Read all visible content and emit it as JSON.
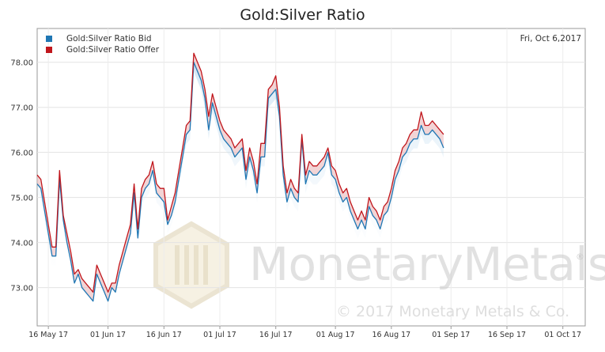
{
  "chart_data": {
    "type": "line",
    "title": "Gold:Silver Ratio",
    "date_label": "Fri, Oct 6,2017",
    "xlabel": "",
    "ylabel": "",
    "ylim": [
      72.15,
      78.75
    ],
    "y_ticks": [
      "73.00",
      "74.00",
      "75.00",
      "76.00",
      "77.00",
      "78.00"
    ],
    "x_ticks": [
      {
        "label": "16 May 17",
        "t": 3
      },
      {
        "label": "01 Jun 17",
        "t": 19
      },
      {
        "label": "16 Jun 17",
        "t": 34
      },
      {
        "label": "01 Jul 17",
        "t": 49
      },
      {
        "label": "16 Jul 17",
        "t": 64
      },
      {
        "label": "01 Aug 17",
        "t": 80
      },
      {
        "label": "16 Aug 17",
        "t": 95
      },
      {
        "label": "01 Sep 17",
        "t": 111
      },
      {
        "label": "16 Sep 17",
        "t": 126
      },
      {
        "label": "01 Oct 17",
        "t": 141
      }
    ],
    "x_range": [
      0,
      147
    ],
    "grid": true,
    "legend_position": "top-left",
    "series": [
      {
        "name": "Gold:Silver Ratio Bid",
        "color": "#1f77b4",
        "points": [
          [
            0,
            75.3
          ],
          [
            1,
            75.2
          ],
          [
            2,
            74.7
          ],
          [
            3,
            74.2
          ],
          [
            4,
            73.7
          ],
          [
            5,
            73.7
          ],
          [
            6,
            75.4
          ],
          [
            7,
            74.5
          ],
          [
            8,
            74.0
          ],
          [
            9,
            73.6
          ],
          [
            10,
            73.1
          ],
          [
            11,
            73.3
          ],
          [
            12,
            73.0
          ],
          [
            13,
            72.9
          ],
          [
            14,
            72.8
          ],
          [
            15,
            72.7
          ],
          [
            16,
            73.3
          ],
          [
            17,
            73.1
          ],
          [
            18,
            72.9
          ],
          [
            19,
            72.7
          ],
          [
            20,
            73.0
          ],
          [
            21,
            72.9
          ],
          [
            22,
            73.3
          ],
          [
            23,
            73.6
          ],
          [
            24,
            73.9
          ],
          [
            25,
            74.2
          ],
          [
            26,
            75.1
          ],
          [
            27,
            74.1
          ],
          [
            28,
            75.0
          ],
          [
            29,
            75.2
          ],
          [
            30,
            75.3
          ],
          [
            31,
            75.6
          ],
          [
            32,
            75.1
          ],
          [
            33,
            75.0
          ],
          [
            34,
            74.9
          ],
          [
            35,
            74.4
          ],
          [
            36,
            74.6
          ],
          [
            37,
            74.9
          ],
          [
            38,
            75.4
          ],
          [
            39,
            75.9
          ],
          [
            40,
            76.4
          ],
          [
            41,
            76.5
          ],
          [
            42,
            78.0
          ],
          [
            43,
            77.8
          ],
          [
            44,
            77.6
          ],
          [
            45,
            77.2
          ],
          [
            46,
            76.5
          ],
          [
            47,
            77.1
          ],
          [
            48,
            76.8
          ],
          [
            49,
            76.5
          ],
          [
            50,
            76.3
          ],
          [
            51,
            76.2
          ],
          [
            52,
            76.1
          ],
          [
            53,
            75.9
          ],
          [
            54,
            76.0
          ],
          [
            55,
            76.1
          ],
          [
            56,
            75.4
          ],
          [
            57,
            75.9
          ],
          [
            58,
            75.6
          ],
          [
            59,
            75.1
          ],
          [
            60,
            75.9
          ],
          [
            61,
            75.9
          ],
          [
            62,
            77.2
          ],
          [
            63,
            77.3
          ],
          [
            64,
            77.4
          ],
          [
            65,
            76.8
          ],
          [
            66,
            75.5
          ],
          [
            67,
            74.9
          ],
          [
            68,
            75.2
          ],
          [
            69,
            75.0
          ],
          [
            70,
            74.9
          ],
          [
            71,
            76.3
          ],
          [
            72,
            75.3
          ],
          [
            73,
            75.6
          ],
          [
            74,
            75.5
          ],
          [
            75,
            75.5
          ],
          [
            76,
            75.6
          ],
          [
            77,
            75.7
          ],
          [
            78,
            76.0
          ],
          [
            79,
            75.5
          ],
          [
            80,
            75.4
          ],
          [
            81,
            75.1
          ],
          [
            82,
            74.9
          ],
          [
            83,
            75.0
          ],
          [
            84,
            74.7
          ],
          [
            85,
            74.5
          ],
          [
            86,
            74.3
          ],
          [
            87,
            74.5
          ],
          [
            88,
            74.3
          ],
          [
            89,
            74.8
          ],
          [
            90,
            74.6
          ],
          [
            91,
            74.5
          ],
          [
            92,
            74.3
          ],
          [
            93,
            74.6
          ],
          [
            94,
            74.7
          ],
          [
            95,
            75.0
          ],
          [
            96,
            75.4
          ],
          [
            97,
            75.6
          ],
          [
            98,
            75.9
          ],
          [
            99,
            76.0
          ],
          [
            100,
            76.2
          ],
          [
            101,
            76.3
          ],
          [
            102,
            76.3
          ],
          [
            103,
            76.6
          ],
          [
            104,
            76.4
          ],
          [
            105,
            76.4
          ],
          [
            106,
            76.5
          ],
          [
            107,
            76.4
          ],
          [
            108,
            76.3
          ],
          [
            109,
            76.1
          ]
        ]
      },
      {
        "name": "Gold:Silver Ratio Offer",
        "color": "#c0161c",
        "points": [
          [
            0,
            75.5
          ],
          [
            1,
            75.4
          ],
          [
            2,
            74.9
          ],
          [
            3,
            74.4
          ],
          [
            4,
            73.9
          ],
          [
            5,
            73.9
          ],
          [
            6,
            75.6
          ],
          [
            7,
            74.6
          ],
          [
            8,
            74.2
          ],
          [
            9,
            73.8
          ],
          [
            10,
            73.3
          ],
          [
            11,
            73.4
          ],
          [
            12,
            73.2
          ],
          [
            13,
            73.1
          ],
          [
            14,
            73.0
          ],
          [
            15,
            72.9
          ],
          [
            16,
            73.5
          ],
          [
            17,
            73.3
          ],
          [
            18,
            73.1
          ],
          [
            19,
            72.9
          ],
          [
            20,
            73.1
          ],
          [
            21,
            73.1
          ],
          [
            22,
            73.5
          ],
          [
            23,
            73.8
          ],
          [
            24,
            74.1
          ],
          [
            25,
            74.4
          ],
          [
            26,
            75.3
          ],
          [
            27,
            74.3
          ],
          [
            28,
            75.2
          ],
          [
            29,
            75.4
          ],
          [
            30,
            75.5
          ],
          [
            31,
            75.8
          ],
          [
            32,
            75.3
          ],
          [
            33,
            75.2
          ],
          [
            34,
            75.2
          ],
          [
            35,
            74.5
          ],
          [
            36,
            74.8
          ],
          [
            37,
            75.1
          ],
          [
            38,
            75.6
          ],
          [
            39,
            76.1
          ],
          [
            40,
            76.6
          ],
          [
            41,
            76.7
          ],
          [
            42,
            78.2
          ],
          [
            43,
            78.0
          ],
          [
            44,
            77.8
          ],
          [
            45,
            77.4
          ],
          [
            46,
            76.8
          ],
          [
            47,
            77.3
          ],
          [
            48,
            77.0
          ],
          [
            49,
            76.7
          ],
          [
            50,
            76.5
          ],
          [
            51,
            76.4
          ],
          [
            52,
            76.3
          ],
          [
            53,
            76.1
          ],
          [
            54,
            76.2
          ],
          [
            55,
            76.3
          ],
          [
            56,
            75.6
          ],
          [
            57,
            76.1
          ],
          [
            58,
            75.8
          ],
          [
            59,
            75.3
          ],
          [
            60,
            76.2
          ],
          [
            61,
            76.2
          ],
          [
            62,
            77.4
          ],
          [
            63,
            77.5
          ],
          [
            64,
            77.7
          ],
          [
            65,
            77.0
          ],
          [
            66,
            75.7
          ],
          [
            67,
            75.1
          ],
          [
            68,
            75.4
          ],
          [
            69,
            75.2
          ],
          [
            70,
            75.1
          ],
          [
            71,
            76.4
          ],
          [
            72,
            75.5
          ],
          [
            73,
            75.8
          ],
          [
            74,
            75.7
          ],
          [
            75,
            75.7
          ],
          [
            76,
            75.8
          ],
          [
            77,
            75.9
          ],
          [
            78,
            76.1
          ],
          [
            79,
            75.7
          ],
          [
            80,
            75.6
          ],
          [
            81,
            75.3
          ],
          [
            82,
            75.1
          ],
          [
            83,
            75.2
          ],
          [
            84,
            74.9
          ],
          [
            85,
            74.7
          ],
          [
            86,
            74.5
          ],
          [
            87,
            74.7
          ],
          [
            88,
            74.5
          ],
          [
            89,
            75.0
          ],
          [
            90,
            74.8
          ],
          [
            91,
            74.7
          ],
          [
            92,
            74.5
          ],
          [
            93,
            74.8
          ],
          [
            94,
            74.9
          ],
          [
            95,
            75.2
          ],
          [
            96,
            75.6
          ],
          [
            97,
            75.8
          ],
          [
            98,
            76.1
          ],
          [
            99,
            76.2
          ],
          [
            100,
            76.4
          ],
          [
            101,
            76.5
          ],
          [
            102,
            76.5
          ],
          [
            103,
            76.9
          ],
          [
            104,
            76.6
          ],
          [
            105,
            76.6
          ],
          [
            106,
            76.7
          ],
          [
            107,
            76.6
          ],
          [
            108,
            76.5
          ],
          [
            109,
            76.4
          ]
        ]
      }
    ]
  },
  "watermark": {
    "name": "MonetaryMetals",
    "registered": "®",
    "copyright": "© 2017 Monetary Metals & Co."
  }
}
